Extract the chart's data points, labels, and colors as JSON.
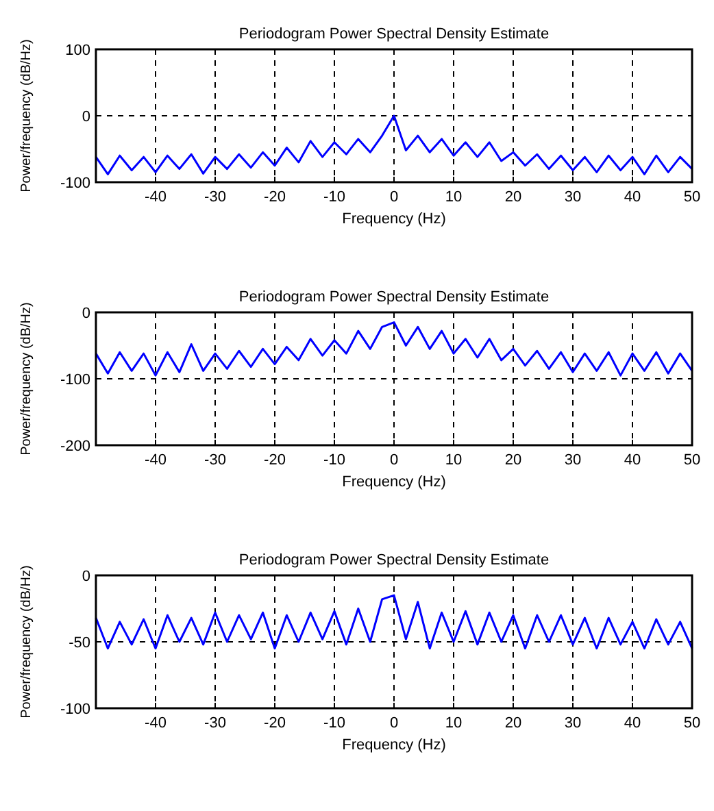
{
  "chart_data": [
    {
      "type": "line",
      "title": "Periodogram Power Spectral Density Estimate",
      "xlabel": "Frequency (Hz)",
      "ylabel": "Power/frequency (dB/Hz)",
      "xlim": [
        -50,
        50
      ],
      "xticks": [
        -40,
        -30,
        -20,
        -10,
        0,
        10,
        20,
        30,
        40,
        50
      ],
      "ylim": [
        -100,
        100
      ],
      "yticks": [
        -100,
        0,
        100
      ],
      "grid": true,
      "x": [
        -50,
        -48,
        -46,
        -44,
        -42,
        -40,
        -38,
        -36,
        -34,
        -32,
        -30,
        -28,
        -26,
        -24,
        -22,
        -20,
        -18,
        -16,
        -14,
        -12,
        -10,
        -8,
        -6,
        -4,
        -2,
        0,
        2,
        4,
        6,
        8,
        10,
        12,
        14,
        16,
        18,
        20,
        22,
        24,
        26,
        28,
        30,
        32,
        34,
        36,
        38,
        40,
        42,
        44,
        46,
        48,
        50
      ],
      "series": [
        {
          "color": "#0000ff",
          "values": [
            -62,
            -88,
            -60,
            -82,
            -62,
            -85,
            -60,
            -80,
            -58,
            -87,
            -62,
            -80,
            -58,
            -78,
            -55,
            -75,
            -48,
            -70,
            -38,
            -62,
            -40,
            -58,
            -35,
            -55,
            -30,
            0,
            -52,
            -30,
            -55,
            -35,
            -60,
            -40,
            -62,
            -40,
            -68,
            -55,
            -75,
            -58,
            -80,
            -60,
            -82,
            -62,
            -85,
            -60,
            -82,
            -62,
            -88,
            -60,
            -85,
            -62,
            -80
          ]
        }
      ]
    },
    {
      "type": "line",
      "title": "Periodogram Power Spectral Density Estimate",
      "xlabel": "Frequency (Hz)",
      "ylabel": "Power/frequency (dB/Hz)",
      "xlim": [
        -50,
        50
      ],
      "xticks": [
        -40,
        -30,
        -20,
        -10,
        0,
        10,
        20,
        30,
        40,
        50
      ],
      "ylim": [
        -200,
        0
      ],
      "yticks": [
        -200,
        -100,
        0
      ],
      "grid": true,
      "x": [
        -50,
        -48,
        -46,
        -44,
        -42,
        -40,
        -38,
        -36,
        -34,
        -32,
        -30,
        -28,
        -26,
        -24,
        -22,
        -20,
        -18,
        -16,
        -14,
        -12,
        -10,
        -8,
        -6,
        -4,
        -2,
        0,
        2,
        4,
        6,
        8,
        10,
        12,
        14,
        16,
        18,
        20,
        22,
        24,
        26,
        28,
        30,
        32,
        34,
        36,
        38,
        40,
        42,
        44,
        46,
        48,
        50
      ],
      "series": [
        {
          "color": "#0000ff",
          "values": [
            -62,
            -92,
            -60,
            -88,
            -62,
            -95,
            -60,
            -90,
            -48,
            -88,
            -62,
            -85,
            -58,
            -82,
            -55,
            -78,
            -52,
            -72,
            -40,
            -65,
            -42,
            -62,
            -28,
            -55,
            -22,
            -15,
            -50,
            -22,
            -55,
            -28,
            -62,
            -40,
            -68,
            -40,
            -72,
            -55,
            -80,
            -58,
            -85,
            -60,
            -90,
            -62,
            -88,
            -60,
            -95,
            -62,
            -88,
            -60,
            -92,
            -62,
            -88
          ]
        }
      ]
    },
    {
      "type": "line",
      "title": "Periodogram Power Spectral Density Estimate",
      "xlabel": "Frequency (Hz)",
      "ylabel": "Power/frequency (dB/Hz)",
      "xlim": [
        -50,
        50
      ],
      "xticks": [
        -40,
        -30,
        -20,
        -10,
        0,
        10,
        20,
        30,
        40,
        50
      ],
      "ylim": [
        -100,
        0
      ],
      "yticks": [
        -100,
        -50,
        0
      ],
      "grid": true,
      "x": [
        -50,
        -48,
        -46,
        -44,
        -42,
        -40,
        -38,
        -36,
        -34,
        -32,
        -30,
        -28,
        -26,
        -24,
        -22,
        -20,
        -18,
        -16,
        -14,
        -12,
        -10,
        -8,
        -6,
        -4,
        -2,
        0,
        2,
        4,
        6,
        8,
        10,
        12,
        14,
        16,
        18,
        20,
        22,
        24,
        26,
        28,
        30,
        32,
        34,
        36,
        38,
        40,
        42,
        44,
        46,
        48,
        50
      ],
      "series": [
        {
          "color": "#0000ff",
          "values": [
            -32,
            -55,
            -35,
            -52,
            -33,
            -55,
            -30,
            -50,
            -32,
            -52,
            -28,
            -50,
            -30,
            -48,
            -28,
            -55,
            -30,
            -50,
            -28,
            -48,
            -27,
            -52,
            -25,
            -50,
            -18,
            -15,
            -48,
            -20,
            -55,
            -28,
            -50,
            -27,
            -52,
            -28,
            -50,
            -30,
            -55,
            -30,
            -50,
            -30,
            -52,
            -32,
            -55,
            -32,
            -52,
            -35,
            -55,
            -33,
            -52,
            -35,
            -55
          ]
        }
      ]
    }
  ]
}
